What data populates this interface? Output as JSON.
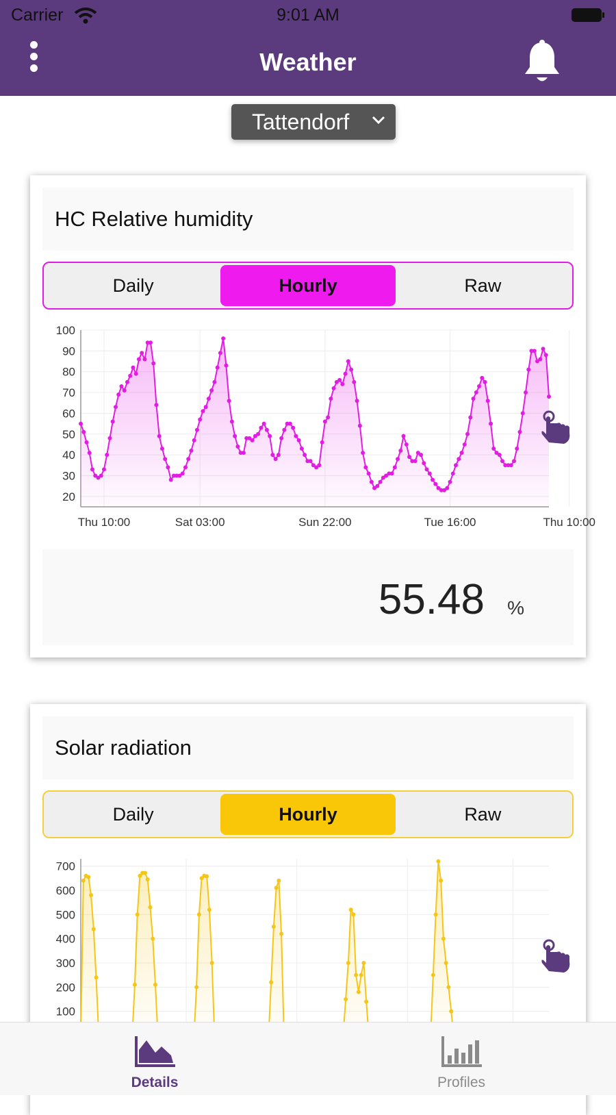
{
  "status_bar": {
    "carrier": "Carrier",
    "time": "9:01 AM"
  },
  "header": {
    "title": "Weather",
    "menu_icon": "more-vertical-icon",
    "bell_icon": "bell-icon"
  },
  "location": {
    "selected": "Tattendorf"
  },
  "cards": [
    {
      "title": "HC Relative humidity",
      "tabs": [
        "Daily",
        "Hourly",
        "Raw"
      ],
      "active_tab": "Hourly",
      "accent": "#ee1aee",
      "current_value": "55.48",
      "unit": "%"
    },
    {
      "title": "Solar radiation",
      "tabs": [
        "Daily",
        "Hourly",
        "Raw"
      ],
      "active_tab": "Hourly",
      "accent": "#fac708"
    }
  ],
  "chart_data": [
    {
      "type": "area",
      "ylim": [
        15,
        100
      ],
      "yticks": [
        100,
        90,
        80,
        70,
        60,
        50,
        40,
        30,
        20
      ],
      "xticks": [
        "Thu 10:00",
        "Sat 03:00",
        "Sun 22:00",
        "Tue 16:00",
        "Thu 10:00"
      ],
      "xtick_index": [
        8,
        41,
        84,
        127,
        168
      ],
      "series": [
        {
          "color": "#e31ce3",
          "values": [
            55,
            51,
            46,
            41,
            33,
            30,
            29,
            30,
            33,
            40,
            48,
            56,
            63,
            69,
            73,
            71,
            75,
            78,
            82,
            79,
            86,
            89,
            86,
            94,
            94,
            84,
            64,
            49,
            43,
            38,
            34,
            28,
            30,
            30,
            30,
            31,
            34,
            38,
            42,
            47,
            52,
            57,
            61,
            63,
            67,
            71,
            75,
            82,
            89,
            96,
            83,
            66,
            56,
            49,
            44,
            41,
            41,
            48,
            48,
            47,
            49,
            50,
            53,
            55,
            52,
            49,
            40,
            38,
            40,
            48,
            52,
            55,
            55,
            53,
            49,
            47,
            43,
            40,
            37,
            37,
            35,
            34,
            35,
            46,
            56,
            58,
            67,
            72,
            75,
            76,
            74,
            79,
            85,
            81,
            75,
            66,
            54,
            41,
            34,
            31,
            27,
            24,
            25,
            27,
            29,
            30,
            31,
            31,
            34,
            38,
            42,
            49,
            45,
            39,
            37,
            37,
            41,
            40,
            36,
            33,
            31,
            28,
            26,
            24,
            23,
            23,
            24,
            27,
            31,
            35,
            38,
            41,
            45,
            50,
            58,
            67,
            70,
            73,
            77,
            75,
            66,
            55,
            43,
            41,
            40,
            37,
            35,
            35,
            35,
            37,
            43,
            51,
            60,
            70,
            81,
            90,
            90,
            85,
            86,
            91,
            88,
            68
          ]
        }
      ]
    },
    {
      "type": "area",
      "ylim": [
        0,
        730
      ],
      "yticks": [
        700,
        600,
        500,
        400,
        300,
        200,
        100
      ],
      "series": [
        {
          "color": "#f5c518",
          "values": [
            0,
            640,
            660,
            655,
            580,
            440,
            240,
            0,
            0,
            0,
            0,
            0,
            0,
            0,
            0,
            0,
            0,
            0,
            0,
            0,
            0,
            210,
            500,
            660,
            672,
            672,
            645,
            530,
            400,
            210,
            0,
            0,
            0,
            0,
            0,
            0,
            0,
            0,
            0,
            0,
            0,
            0,
            0,
            0,
            0,
            200,
            500,
            650,
            660,
            658,
            520,
            300,
            0,
            0,
            0,
            0,
            0,
            0,
            0,
            0,
            0,
            0,
            0,
            0,
            0,
            0,
            0,
            0,
            0,
            0,
            0,
            0,
            0,
            0,
            220,
            450,
            610,
            640,
            420,
            0,
            0,
            0,
            0,
            0,
            0,
            0,
            0,
            0,
            0,
            0,
            0,
            0,
            0,
            0,
            0,
            0,
            0,
            0,
            0,
            0,
            0,
            0,
            0,
            150,
            300,
            520,
            500,
            250,
            180,
            250,
            300,
            140,
            0,
            0,
            0,
            0,
            0,
            0,
            0,
            0,
            0,
            0,
            0,
            0,
            0,
            0,
            0,
            0,
            0,
            0,
            0,
            0,
            0,
            0,
            0,
            0,
            0,
            250,
            500,
            720,
            640,
            400,
            300,
            200,
            100,
            0,
            0,
            0,
            0,
            0,
            0,
            0,
            0,
            0,
            0,
            0,
            0,
            0,
            0,
            0,
            0,
            0,
            0,
            0,
            0,
            0,
            0,
            0,
            0,
            0,
            0,
            0,
            0,
            0,
            0,
            0,
            0,
            0,
            0,
            0,
            0,
            0,
            0
          ]
        }
      ]
    }
  ],
  "tabbar": {
    "details": "Details",
    "profiles": "Profiles"
  }
}
